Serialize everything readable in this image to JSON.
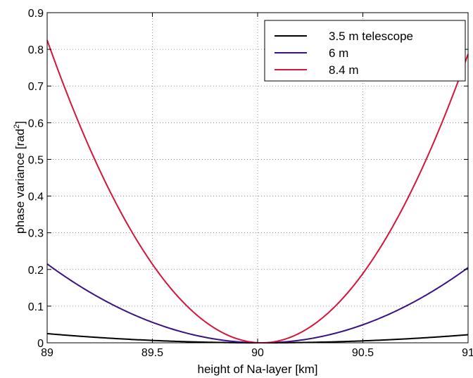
{
  "chart_data": {
    "type": "line",
    "xlabel": "height of Na-layer [km]",
    "ylabel_main": "phase variance [rad",
    "ylabel_sup": "2",
    "ylabel_close": "]",
    "xlim": [
      89,
      91
    ],
    "ylim": [
      0,
      0.9
    ],
    "x_ticks": [
      89,
      89.5,
      90,
      90.5,
      91
    ],
    "x_tick_labels": [
      "89",
      "89.5",
      "90",
      "90.5",
      "91"
    ],
    "y_ticks": [
      0,
      0.1,
      0.2,
      0.3,
      0.4,
      0.5,
      0.6,
      0.7,
      0.8,
      0.9
    ],
    "y_tick_labels": [
      "0",
      "0.1",
      "0.2",
      "0.3",
      "0.4",
      "0.5",
      "0.6",
      "0.7",
      "0.8",
      "0.9"
    ],
    "grid": true,
    "legend_position": "top-right",
    "series": [
      {
        "name": "3.5 m telescope",
        "color": "#000000",
        "vertex": 90.02,
        "left": 0.025,
        "right": 0.022
      },
      {
        "name": "6 m",
        "color": "#3b1282",
        "vertex": 90.02,
        "left": 0.215,
        "right": 0.205
      },
      {
        "name": "8.4 m",
        "color": "#d4163a",
        "vertex": 90.02,
        "left": 0.825,
        "right": 0.787
      }
    ]
  }
}
